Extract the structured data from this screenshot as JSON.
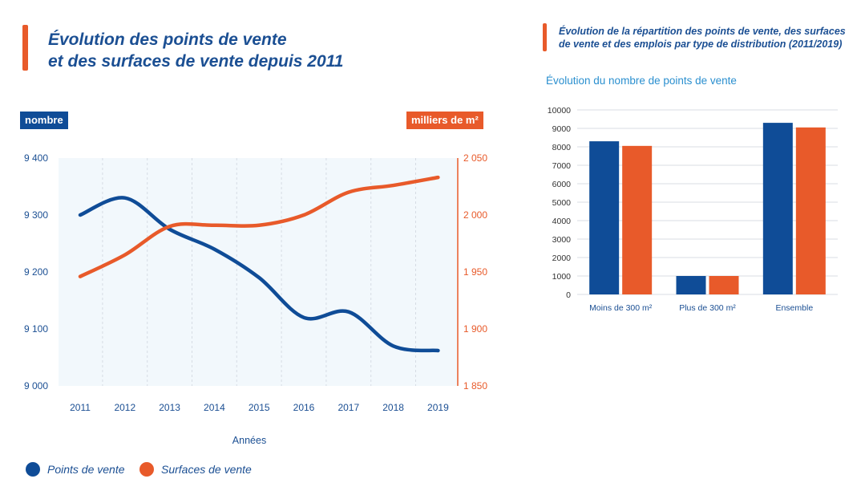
{
  "colors": {
    "blue": "#0f4c97",
    "orange": "#e85a2a",
    "plot_bg": "#f2f8fc",
    "axis_text": "#1b4f93"
  },
  "left_panel": {
    "title_line1": "Évolution des points de vente",
    "title_line2": "et des surfaces de vente depuis 2011",
    "left_unit": "nombre",
    "right_unit": "milliers de m²",
    "legend": {
      "series1": "Points de vente",
      "series2": "Surfaces de vente"
    }
  },
  "right_panel": {
    "title_line1": "Évolution de la répartition des points de vente, des surfaces",
    "title_line2": "de vente et des emplois par type de distribution (2011/2019)",
    "subtitle": "Évolution du nombre de points de vente"
  },
  "chart_data": [
    {
      "type": "line",
      "x": [
        2011,
        2012,
        2013,
        2014,
        2015,
        2016,
        2017,
        2018,
        2019
      ],
      "xlabel": "Années",
      "series": [
        {
          "name": "Points de vente",
          "axis": "left",
          "color": "#0f4c97",
          "values": [
            9300,
            9330,
            9275,
            9240,
            9190,
            9120,
            9130,
            9070,
            9062
          ]
        },
        {
          "name": "Surfaces de vente",
          "axis": "right",
          "color": "#e85a2a",
          "values": [
            1946,
            1965,
            1990,
            1991,
            1991,
            2000,
            2020,
            2026,
            2033
          ]
        }
      ],
      "y_left": {
        "label": "nombre",
        "ylim": [
          9000,
          9400
        ],
        "ticks": [
          "9 000",
          "9 100",
          "9 200",
          "9 300",
          "9 400"
        ]
      },
      "y_right": {
        "label": "milliers de m²",
        "ylim": [
          1850,
          2050
        ],
        "ticks": [
          "1 850",
          "1 900",
          "1 950",
          "2 000",
          "2 050"
        ]
      },
      "grid": "vertical-dashed",
      "legend_position": "bottom-left"
    },
    {
      "type": "bar",
      "categories": [
        "Moins de 300 m²",
        "Plus de 300 m²",
        "Ensemble"
      ],
      "series": [
        {
          "color": "#0f4c97",
          "values": [
            8300,
            1000,
            9300
          ]
        },
        {
          "color": "#e85a2a",
          "values": [
            8050,
            1000,
            9050
          ]
        }
      ],
      "ylim": [
        0,
        10000
      ],
      "yticks": [
        "0",
        "1000",
        "2000",
        "3000",
        "4000",
        "5000",
        "6000",
        "7000",
        "8000",
        "9000",
        "10000"
      ],
      "grid": "horizontal"
    }
  ]
}
